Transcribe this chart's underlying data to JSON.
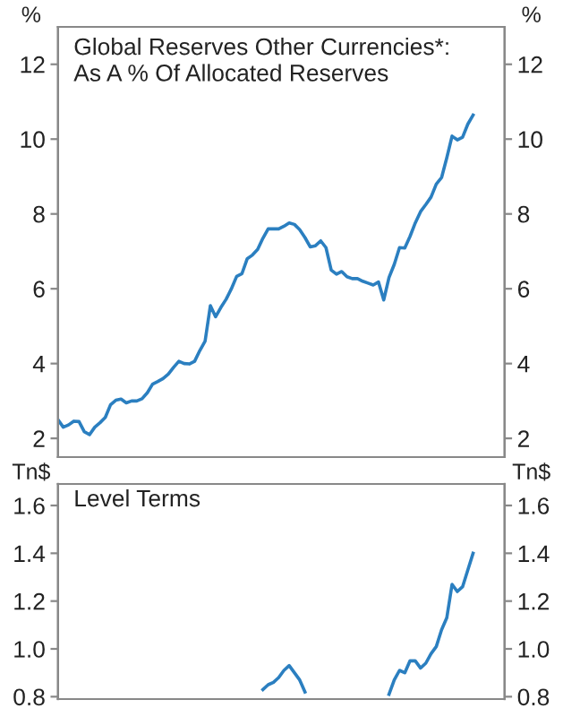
{
  "chart_data": [
    {
      "type": "line",
      "title": "Global Reserves Other Currencies*:\nAs A % Of Allocated Reserves",
      "ylabel": "%",
      "y2label": "%",
      "categories": [
        null,
        null,
        null,
        null,
        null,
        null,
        null,
        null,
        null,
        null,
        null,
        null,
        null,
        null,
        null,
        null,
        null,
        null,
        null,
        null,
        null,
        null,
        null,
        null,
        null,
        null,
        null,
        null,
        null,
        null,
        null,
        null,
        null,
        null,
        null,
        null,
        null,
        null,
        null,
        null,
        null,
        null,
        null,
        null,
        null,
        null,
        null,
        null,
        null,
        null,
        null,
        null,
        null,
        null,
        null,
        null,
        null,
        null,
        null,
        null,
        null,
        null,
        null,
        null,
        null,
        null,
        null,
        null,
        null,
        null,
        null,
        null,
        null,
        null,
        null,
        null,
        null,
        null,
        null,
        null,
        null,
        null,
        null,
        null,
        null,
        null
      ],
      "series": [
        {
          "color": "#2b7fc0",
          "values": [
            2.5,
            2.3,
            2.36,
            2.46,
            2.45,
            2.18,
            2.1,
            2.3,
            2.42,
            2.56,
            2.9,
            3.02,
            3.05,
            2.95,
            3.0,
            3.0,
            3.06,
            3.22,
            3.45,
            3.52,
            3.6,
            3.72,
            3.9,
            4.06,
            4.0,
            3.99,
            4.06,
            4.35,
            4.6,
            5.55,
            5.25,
            5.5,
            5.72,
            6.0,
            6.33,
            6.4,
            6.8,
            6.9,
            7.05,
            7.35,
            7.6,
            7.6,
            7.6,
            7.67,
            7.76,
            7.72,
            7.58,
            7.37,
            7.12,
            7.15,
            7.28,
            7.1,
            6.5,
            6.39,
            6.46,
            6.32,
            6.27,
            6.27,
            6.2,
            6.15,
            6.1,
            6.18,
            5.7,
            6.3,
            6.65,
            7.1,
            7.09,
            7.4,
            7.76,
            8.06,
            8.25,
            8.45,
            8.8,
            8.97,
            9.5,
            10.08,
            9.98,
            10.05,
            10.4,
            10.64,
            null,
            null,
            null,
            null,
            null,
            null
          ]
        }
      ],
      "ylim": [
        1.5,
        13
      ],
      "yticks": [
        2,
        4,
        6,
        8,
        10,
        12
      ],
      "y2lim": [
        1.5,
        13
      ],
      "y2ticks": [
        2,
        4,
        6,
        8,
        10,
        12
      ],
      "tick_labels": "y",
      "grid": false
    },
    {
      "type": "line",
      "title": "Level Terms",
      "ylabel": "Tn$",
      "y2label": "Tn$",
      "categories": [
        null,
        null,
        null,
        null,
        null,
        null,
        null,
        null,
        null,
        null,
        null,
        null,
        null,
        null,
        null,
        null,
        null,
        null,
        null,
        null,
        null,
        null,
        null,
        null,
        null,
        null,
        null,
        null,
        null,
        null,
        null,
        null,
        null,
        null,
        null,
        null,
        null,
        null,
        null,
        null,
        null,
        null,
        null,
        null,
        null,
        null,
        null,
        null,
        null,
        null,
        null,
        null,
        null,
        null,
        null,
        null,
        null,
        null,
        null,
        null,
        null,
        null,
        null,
        null,
        null,
        null,
        null,
        null,
        null,
        null,
        null,
        null,
        null,
        null,
        null,
        null,
        null,
        null,
        null,
        null,
        null,
        null,
        null,
        null,
        null,
        null
      ],
      "series": [
        {
          "color": "#2b7fc0",
          "values": [
            null,
            null,
            null,
            null,
            null,
            null,
            null,
            null,
            null,
            null,
            null,
            null,
            null,
            null,
            null,
            null,
            null,
            null,
            null,
            null,
            null,
            null,
            null,
            null,
            null,
            null,
            null,
            null,
            null,
            null,
            null,
            null,
            null,
            null,
            null,
            null,
            null,
            null,
            null,
            0.83,
            0.85,
            0.86,
            0.88,
            0.91,
            0.93,
            0.9,
            0.87,
            0.82,
            null,
            null,
            null,
            null,
            null,
            null,
            null,
            null,
            null,
            null,
            null,
            null,
            null,
            null,
            null,
            0.81,
            0.87,
            0.91,
            0.9,
            0.95,
            0.95,
            0.92,
            0.94,
            0.98,
            1.01,
            1.08,
            1.13,
            1.27,
            1.24,
            1.26,
            1.33,
            1.4,
            null,
            null,
            null,
            null,
            null,
            null
          ]
        }
      ],
      "ylim": [
        0.79,
        1.69
      ],
      "yticks": [
        0.8,
        {
          "value": 1.0,
          "label": "1.0"
        },
        1.2,
        1.4,
        1.6
      ],
      "y2lim": [
        0.79,
        1.69
      ],
      "y2ticks": [
        0.8,
        {
          "value": 1.0,
          "label": "1.0"
        },
        1.2,
        1.4,
        1.6
      ],
      "tick_labels": "y",
      "grid": false
    }
  ]
}
